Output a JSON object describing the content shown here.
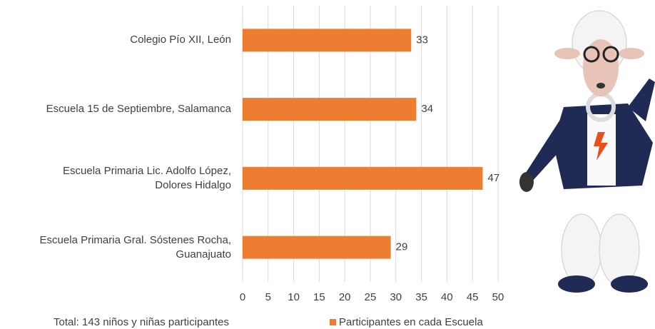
{
  "chart_data": {
    "type": "bar",
    "orientation": "horizontal",
    "categories": [
      "Colegio Pío XII, León",
      "Escuela 15 de Septiembre, Salamanca",
      "Escuela Primaria Lic. Adolfo López,\nDolores Hidalgo",
      "Escuela Primaria Gral. Sóstenes Rocha,\nGuanajuato"
    ],
    "series": [
      {
        "name": "Participantes en cada Escuela",
        "color": "#ed7d31",
        "values": [
          33,
          34,
          47,
          29
        ]
      }
    ],
    "xlim": [
      0,
      50
    ],
    "xticks": [
      0,
      5,
      10,
      15,
      20,
      25,
      30,
      35,
      40,
      45,
      50
    ],
    "grid": true,
    "annotation": "Total: 143 niños y niñas participantes"
  }
}
